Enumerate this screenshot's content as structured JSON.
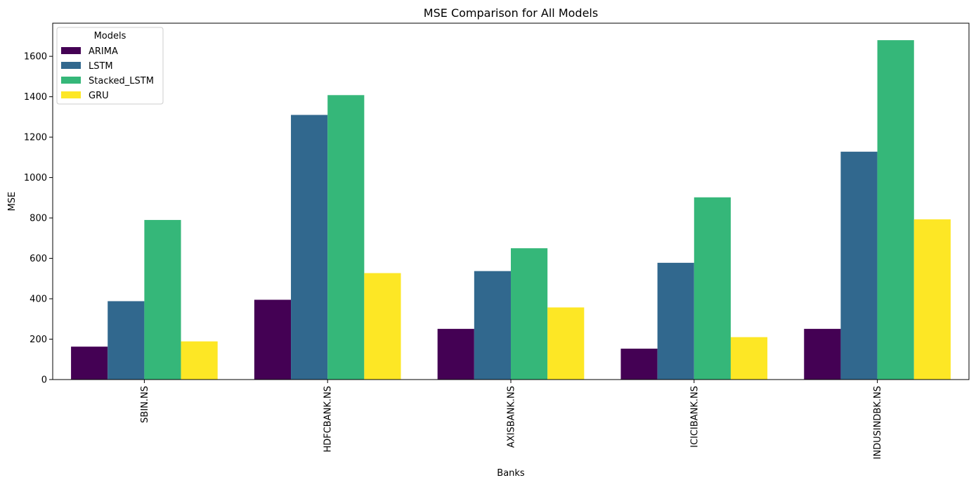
{
  "chart_data": {
    "type": "bar",
    "title": "MSE Comparison for All Models",
    "xlabel": "Banks",
    "ylabel": "MSE",
    "categories": [
      "SBIN.NS",
      "HDFCBANK.NS",
      "AXISBANK.NS",
      "ICICIBANK.NS",
      "INDUSINDBK.NS"
    ],
    "series": [
      {
        "name": "ARIMA",
        "color": "#440154",
        "values": [
          163,
          395,
          251,
          153,
          251
        ]
      },
      {
        "name": "LSTM",
        "color": "#31688e",
        "values": [
          388,
          1310,
          537,
          578,
          1128
        ]
      },
      {
        "name": "Stacked_LSTM",
        "color": "#35b779",
        "values": [
          790,
          1408,
          650,
          902,
          1680
        ]
      },
      {
        "name": "GRU",
        "color": "#fde725",
        "values": [
          189,
          527,
          357,
          210,
          793
        ]
      }
    ],
    "ylim": [
      0,
      1764
    ],
    "yticks": [
      0,
      200,
      400,
      600,
      800,
      1000,
      1200,
      1400,
      1600
    ],
    "legend": {
      "title": "Models",
      "position": "top-left"
    },
    "grid": false
  }
}
